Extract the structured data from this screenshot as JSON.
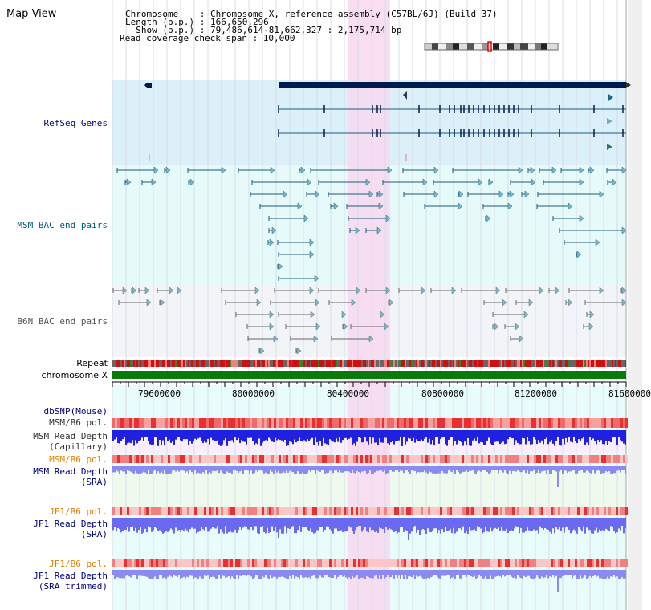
{
  "title": "Map View",
  "header": {
    "chromosome": "Chromosome    : Chromosome X, reference assembly (C57BL/6J) (Build 37)",
    "length": "Length (b.p.) : 166,650,296",
    "show": "  Show (b.p.) : 79,486,614-81,662,327 : 2,175,714 bp",
    "coverage": "Read coverage check span : 10,000"
  },
  "tracks": [
    {
      "id": "refseq",
      "label": "RefSeq Genes",
      "color": "#000080"
    },
    {
      "id": "msm_bac",
      "label": "MSM BAC end pairs",
      "color": "#005a7a"
    },
    {
      "id": "b6n_bac",
      "label": "B6N BAC end pairs",
      "color": "#555555"
    },
    {
      "id": "repeat",
      "label": "Repeat",
      "color": "#000000"
    },
    {
      "id": "chrx",
      "label": "chromosome X",
      "color": "#000000"
    },
    {
      "id": "dbsnp",
      "label": "dbSNP(Mouse)",
      "color": "#000080"
    },
    {
      "id": "msm_pol1",
      "label": "MSM/B6 pol.",
      "color": "#333333"
    },
    {
      "id": "msm_depth_cap",
      "label": "MSM Read Depth\n(Capillary)",
      "color": "#333333"
    },
    {
      "id": "msm_pol2",
      "label": "MSM/B6 pol.",
      "color": "#e08000"
    },
    {
      "id": "msm_depth_sra",
      "label": "MSM Read Depth\n(SRA)",
      "color": "#000080"
    },
    {
      "id": "jf1_pol1",
      "label": "JF1/B6 pol.",
      "color": "#e08000"
    },
    {
      "id": "jf1_depth_sra",
      "label": "JF1 Read Depth\n(SRA)",
      "color": "#000080"
    },
    {
      "id": "jf1_pol2",
      "label": "JF1/B6 pol.",
      "color": "#e08000"
    },
    {
      "id": "jf1_depth_trim",
      "label": "JF1 Read Depth\n(SRA trimmed)",
      "color": "#000080"
    }
  ],
  "axis_ticks": [
    "79600000",
    "80000000",
    "80400000",
    "80800000",
    "81200000",
    "81600000"
  ],
  "colors": {
    "refseq_bg": "#dcf0fa",
    "msm_bg": "#e6fafa",
    "b6n_bg": "#f2f4f8",
    "highlight": "#f8d8f0",
    "gene": "#001c4e",
    "chrom": "#0a7a0a",
    "pol": "#f06060",
    "depth": "#3030e0",
    "depth_light": "#8080f0"
  }
}
